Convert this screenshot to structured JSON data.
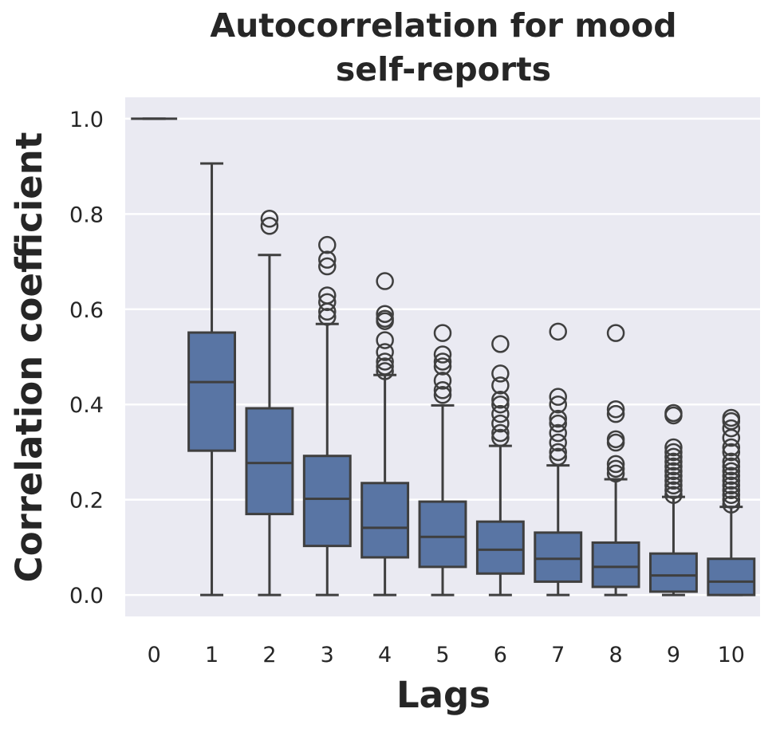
{
  "chart_data": {
    "type": "box",
    "title": "Autocorrelation for mood self-reports",
    "title_lines": [
      "Autocorrelation for mood",
      "self-reports"
    ],
    "xlabel": "Lags",
    "ylabel": "Correlation coefficient",
    "categories": [
      "0",
      "1",
      "2",
      "3",
      "4",
      "5",
      "6",
      "7",
      "8",
      "9",
      "10"
    ],
    "yticks": [
      "0.0",
      "0.2",
      "0.4",
      "0.6",
      "0.8",
      "1.0"
    ],
    "ylim": [
      -0.045,
      1.045
    ],
    "grid": true,
    "colors": {
      "box_fill": "#5975a4",
      "line": "#3f3f3f",
      "background": "#eaeaf2",
      "grid": "#ffffff"
    },
    "boxes": [
      {
        "lag": "0",
        "whislo": 1.0,
        "q1": 1.0,
        "med": 1.0,
        "q3": 1.0,
        "whishi": 1.0,
        "fliers": []
      },
      {
        "lag": "1",
        "whislo": 0.0,
        "q1": 0.303,
        "med": 0.447,
        "q3": 0.551,
        "whishi": 0.906,
        "fliers": []
      },
      {
        "lag": "2",
        "whislo": 0.0,
        "q1": 0.17,
        "med": 0.277,
        "q3": 0.392,
        "whishi": 0.714,
        "fliers": [
          0.79,
          0.775
        ]
      },
      {
        "lag": "3",
        "whislo": 0.0,
        "q1": 0.103,
        "med": 0.202,
        "q3": 0.292,
        "whishi": 0.569,
        "fliers": [
          0.735,
          0.704,
          0.69,
          0.629,
          0.615,
          0.595,
          0.584
        ]
      },
      {
        "lag": "4",
        "whislo": 0.0,
        "q1": 0.079,
        "med": 0.141,
        "q3": 0.235,
        "whishi": 0.462,
        "fliers": [
          0.659,
          0.59,
          0.58,
          0.575,
          0.535,
          0.51,
          0.49,
          0.48,
          0.47
        ]
      },
      {
        "lag": "5",
        "whislo": 0.0,
        "q1": 0.059,
        "med": 0.122,
        "q3": 0.196,
        "whishi": 0.398,
        "fliers": [
          0.55,
          0.505,
          0.49,
          0.48,
          0.45,
          0.43,
          0.42
        ]
      },
      {
        "lag": "6",
        "whislo": 0.0,
        "q1": 0.045,
        "med": 0.095,
        "q3": 0.154,
        "whishi": 0.313,
        "fliers": [
          0.527,
          0.465,
          0.44,
          0.41,
          0.4,
          0.38,
          0.36,
          0.34,
          0.33
        ]
      },
      {
        "lag": "7",
        "whislo": 0.0,
        "q1": 0.028,
        "med": 0.076,
        "q3": 0.131,
        "whishi": 0.272,
        "fliers": [
          0.553,
          0.416,
          0.4,
          0.37,
          0.36,
          0.34,
          0.32,
          0.3,
          0.29
        ]
      },
      {
        "lag": "8",
        "whislo": 0.0,
        "q1": 0.017,
        "med": 0.059,
        "q3": 0.11,
        "whishi": 0.243,
        "fliers": [
          0.55,
          0.39,
          0.38,
          0.327,
          0.32,
          0.275,
          0.265,
          0.255
        ]
      },
      {
        "lag": "9",
        "whislo": 0.0,
        "q1": 0.007,
        "med": 0.041,
        "q3": 0.087,
        "whishi": 0.206,
        "fliers": [
          0.382,
          0.377,
          0.31,
          0.3,
          0.29,
          0.28,
          0.27,
          0.26,
          0.25,
          0.24,
          0.23,
          0.22,
          0.21
        ]
      },
      {
        "lag": "10",
        "whislo": 0.0,
        "q1": 0.0,
        "med": 0.028,
        "q3": 0.076,
        "whishi": 0.185,
        "fliers": [
          0.372,
          0.365,
          0.35,
          0.33,
          0.31,
          0.3,
          0.28,
          0.27,
          0.26,
          0.25,
          0.24,
          0.23,
          0.22,
          0.21,
          0.2,
          0.19
        ]
      }
    ]
  }
}
